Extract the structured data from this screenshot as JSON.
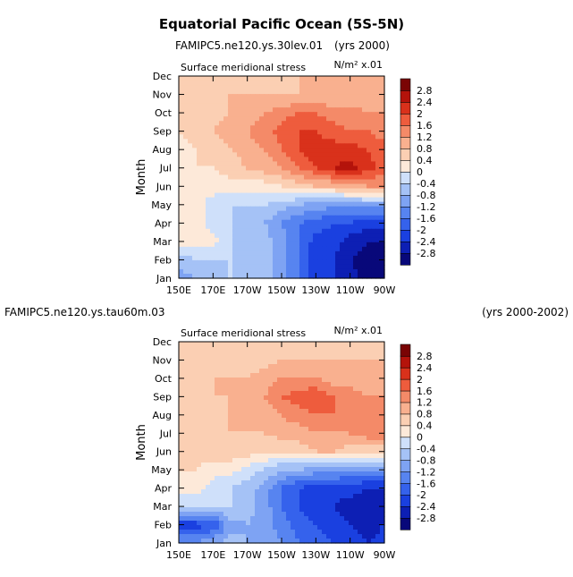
{
  "title": "Equatorial Pacific Ocean (5S-5N)",
  "colorbar": {
    "levels": [
      "-2.8",
      "-2.4",
      "-2",
      "-1.6",
      "-1.2",
      "-0.8",
      "-0.4",
      "0",
      "0.4",
      "0.8",
      "1.2",
      "1.6",
      "2",
      "2.4",
      "2.8"
    ],
    "colors": [
      "#08087a",
      "#0d1fb4",
      "#1a40e0",
      "#3562ec",
      "#5784f0",
      "#7ea3f3",
      "#a5c2f6",
      "#cfe0fa",
      "#fde9d9",
      "#fbcfb3",
      "#f9b08f",
      "#f48a68",
      "#ee5c3d",
      "#d9311b",
      "#b4130b",
      "#7a0404"
    ]
  },
  "chart_data": [
    {
      "type": "heatmap",
      "left_string": "FAMIPC5.ne120.ys.30lev.01",
      "right_string": "(yrs 2000)",
      "subtitle": "Surface meridional stress",
      "units": "N/m² x.01",
      "ylabel": "Month",
      "xlabel": "",
      "x_ticks": [
        "150E",
        "170E",
        "170W",
        "150W",
        "130W",
        "110W",
        "90W"
      ],
      "y_ticks": [
        "Jan",
        "Feb",
        "Mar",
        "Apr",
        "May",
        "Jun",
        "Jul",
        "Aug",
        "Sep",
        "Oct",
        "Nov",
        "Dec"
      ],
      "x": [
        150,
        160,
        170,
        180,
        190,
        200,
        210,
        220,
        230,
        240,
        250,
        260,
        270
      ],
      "grid": [
        [
          -1.0,
          -0.8,
          -0.6,
          -0.4,
          -0.6,
          -0.6,
          -1.0,
          -1.6,
          -2.2,
          -2.4,
          -2.6,
          -3.0,
          -3.0
        ],
        [
          -0.6,
          -0.4,
          -0.4,
          -0.4,
          -0.6,
          -0.6,
          -1.0,
          -1.6,
          -2.2,
          -2.4,
          -2.8,
          -3.0,
          -3.0
        ],
        [
          0.2,
          0.2,
          0.2,
          -0.4,
          -0.6,
          -0.6,
          -1.0,
          -1.6,
          -2.2,
          -2.2,
          -2.6,
          -2.8,
          -2.8
        ],
        [
          0.2,
          0.2,
          -0.2,
          -0.4,
          -0.6,
          -0.8,
          -1.2,
          -1.6,
          -1.8,
          -2.0,
          -2.0,
          -2.2,
          -2.2
        ],
        [
          0.2,
          0.2,
          -0.2,
          -0.4,
          -0.4,
          -0.4,
          -0.6,
          -0.8,
          -1.0,
          -1.0,
          -1.0,
          -1.0,
          -1.0
        ],
        [
          0.2,
          0.2,
          0.2,
          0.2,
          0.2,
          0.2,
          0.4,
          0.6,
          0.8,
          0.8,
          1.0,
          1.2,
          1.2
        ],
        [
          0.2,
          0.4,
          0.4,
          0.6,
          0.8,
          1.0,
          1.2,
          1.6,
          2.0,
          2.4,
          2.6,
          2.2,
          1.8
        ],
        [
          0.2,
          0.4,
          0.6,
          0.8,
          1.0,
          1.2,
          1.6,
          2.0,
          2.2,
          2.2,
          2.2,
          2.0,
          1.8
        ],
        [
          0.4,
          0.6,
          0.8,
          1.0,
          1.2,
          1.4,
          1.8,
          2.0,
          2.0,
          1.8,
          1.6,
          1.6,
          1.4
        ],
        [
          0.4,
          0.6,
          0.6,
          0.8,
          1.0,
          1.2,
          1.4,
          1.6,
          1.6,
          1.4,
          1.4,
          1.2,
          1.2
        ],
        [
          0.4,
          0.6,
          0.6,
          0.8,
          0.8,
          0.8,
          0.8,
          0.8,
          0.8,
          0.8,
          0.8,
          0.8,
          0.8
        ],
        [
          0.4,
          0.4,
          0.6,
          0.6,
          0.6,
          0.6,
          0.6,
          0.8,
          0.8,
          0.8,
          0.8,
          0.8,
          0.8
        ]
      ]
    },
    {
      "type": "heatmap",
      "left_string": "FAMIPC5.ne120.ys.tau60m.03",
      "right_string": "(yrs 2000-2002)",
      "subtitle": "Surface meridional stress",
      "units": "N/m² x.01",
      "ylabel": "Month",
      "xlabel": "",
      "x_ticks": [
        "150E",
        "170E",
        "170W",
        "150W",
        "130W",
        "110W",
        "90W"
      ],
      "y_ticks": [
        "Jan",
        "Feb",
        "Mar",
        "Apr",
        "May",
        "Jun",
        "Jul",
        "Aug",
        "Sep",
        "Oct",
        "Nov",
        "Dec"
      ],
      "x": [
        150,
        160,
        170,
        180,
        190,
        200,
        210,
        220,
        230,
        240,
        250,
        260,
        270
      ],
      "grid": [
        [
          -1.2,
          -1.2,
          -0.8,
          -0.6,
          -0.8,
          -1.0,
          -1.2,
          -1.6,
          -1.8,
          -2.0,
          -2.2,
          -2.4,
          -2.2
        ],
        [
          -2.2,
          -2.2,
          -2.0,
          -1.0,
          -0.8,
          -1.0,
          -1.4,
          -1.8,
          -2.0,
          -2.2,
          -2.4,
          -2.6,
          -2.4
        ],
        [
          -0.4,
          -0.4,
          -0.4,
          -0.4,
          -0.6,
          -1.0,
          -1.6,
          -2.0,
          -2.2,
          -2.4,
          -2.6,
          -2.8,
          -2.6
        ],
        [
          0.2,
          0.2,
          -0.2,
          -0.4,
          -0.6,
          -1.0,
          -1.6,
          -2.0,
          -2.2,
          -2.2,
          -2.2,
          -2.4,
          -2.4
        ],
        [
          0.4,
          0.4,
          0.2,
          0.2,
          -0.2,
          -0.4,
          -0.8,
          -0.8,
          -1.0,
          -1.0,
          -1.2,
          -1.2,
          -1.2
        ],
        [
          0.4,
          0.6,
          0.6,
          0.6,
          0.6,
          0.4,
          0.4,
          0.6,
          0.8,
          0.8,
          0.6,
          0.6,
          0.4
        ],
        [
          0.6,
          0.6,
          0.6,
          0.8,
          0.8,
          0.8,
          1.0,
          1.0,
          1.2,
          1.2,
          1.2,
          1.4,
          1.6
        ],
        [
          0.6,
          0.6,
          0.6,
          0.8,
          0.8,
          1.0,
          1.2,
          1.4,
          1.6,
          1.6,
          1.6,
          1.4,
          1.2
        ],
        [
          0.6,
          0.6,
          0.8,
          0.8,
          1.0,
          1.2,
          1.6,
          1.8,
          2.0,
          1.6,
          1.4,
          1.2,
          1.2
        ],
        [
          0.6,
          0.6,
          0.8,
          0.8,
          0.8,
          1.0,
          1.2,
          1.2,
          1.2,
          1.0,
          1.0,
          0.8,
          0.8
        ],
        [
          0.6,
          0.6,
          0.6,
          0.6,
          0.6,
          0.6,
          0.8,
          0.8,
          0.8,
          0.8,
          0.8,
          0.8,
          0.8
        ],
        [
          0.4,
          0.4,
          0.4,
          0.4,
          0.4,
          0.6,
          0.6,
          0.6,
          0.6,
          0.6,
          0.6,
          0.6,
          0.6
        ]
      ]
    }
  ]
}
